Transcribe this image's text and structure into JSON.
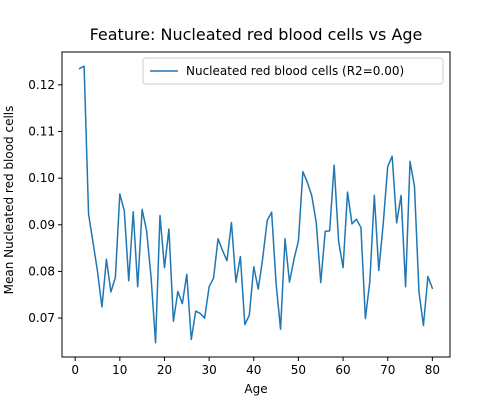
{
  "chart_data": {
    "type": "line",
    "title": "Feature: Nucleated red blood cells vs Age",
    "xlabel": "Age",
    "ylabel": "Mean Nucleated red blood cells",
    "xlim": [
      -2.95,
      83.95
    ],
    "ylim": [
      0.06165,
      0.12705
    ],
    "xticks": [
      0,
      10,
      20,
      30,
      40,
      50,
      60,
      70,
      80
    ],
    "yticks": [
      0.07,
      0.08,
      0.09,
      0.1,
      0.11,
      0.12
    ],
    "ytick_labels": [
      "0.07",
      "0.08",
      "0.09",
      "0.10",
      "0.11",
      "0.12"
    ],
    "grid": false,
    "legend_position": "upper right",
    "series": [
      {
        "name": "Nucleated red blood cells (R2=0.00)",
        "color": "#1f77b4",
        "x": [
          1,
          2,
          3,
          4,
          5,
          6,
          7,
          8,
          9,
          10,
          11,
          12,
          13,
          14,
          15,
          16,
          17,
          18,
          19,
          20,
          21,
          22,
          23,
          24,
          25,
          26,
          27,
          28,
          29,
          30,
          31,
          32,
          33,
          34,
          35,
          36,
          37,
          38,
          39,
          40,
          41,
          42,
          43,
          44,
          45,
          46,
          47,
          48,
          49,
          50,
          51,
          52,
          53,
          54,
          55,
          56,
          57,
          58,
          59,
          60,
          61,
          62,
          63,
          64,
          65,
          66,
          67,
          68,
          69,
          70,
          71,
          72,
          73,
          74,
          75,
          76,
          77,
          78,
          79,
          80
        ],
        "y": [
          0.1235,
          0.124,
          0.0923,
          0.0862,
          0.08,
          0.0724,
          0.0826,
          0.0756,
          0.0787,
          0.0966,
          0.093,
          0.078,
          0.0928,
          0.0767,
          0.0933,
          0.0887,
          0.0788,
          0.0647,
          0.092,
          0.0808,
          0.0891,
          0.0693,
          0.0757,
          0.0731,
          0.0794,
          0.0654,
          0.0715,
          0.071,
          0.07,
          0.0767,
          0.0786,
          0.087,
          0.0845,
          0.0823,
          0.0905,
          0.0777,
          0.0832,
          0.0686,
          0.0706,
          0.081,
          0.0762,
          0.0828,
          0.0909,
          0.0927,
          0.0774,
          0.0676,
          0.087,
          0.0777,
          0.0826,
          0.0865,
          0.1014,
          0.0991,
          0.0962,
          0.0904,
          0.0776,
          0.0886,
          0.0887,
          0.1028,
          0.0865,
          0.0808,
          0.097,
          0.0902,
          0.0912,
          0.0894,
          0.0699,
          0.0779,
          0.0963,
          0.0802,
          0.0903,
          0.1025,
          0.1047,
          0.0904,
          0.0963,
          0.0767,
          0.1036,
          0.0982,
          0.0756,
          0.0684,
          0.0789,
          0.0764
        ]
      }
    ]
  }
}
